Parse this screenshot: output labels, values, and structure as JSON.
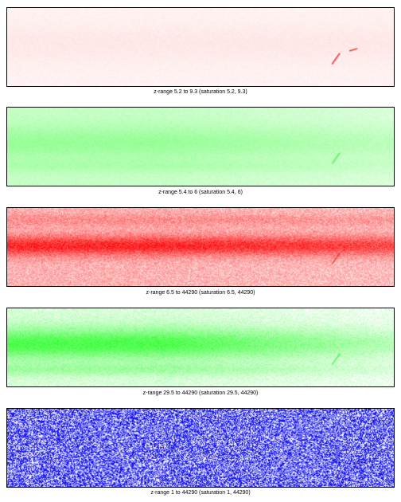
{
  "panels": [
    {
      "caption": "z-range 5.2 to 9.3 (saturation 5.2, 9.3)",
      "color": "#ff0000",
      "style": "faint"
    },
    {
      "caption": "z-range 5.4 to 6 (saturation 5.4, 6)",
      "color": "#00ff00",
      "style": "light"
    },
    {
      "caption": "z-range 6.5 to 44290 (saturation 6.5, 44290)",
      "color": "#ff0000",
      "style": "dense"
    },
    {
      "caption": "z-range 29.5 to 44290 (saturation 29.5, 44290)",
      "color": "#00ff00",
      "style": "medium"
    },
    {
      "caption": "z-range 1 to 44290 (saturation 1, 44290)",
      "color": "#0000ff",
      "style": "speckle"
    }
  ]
}
